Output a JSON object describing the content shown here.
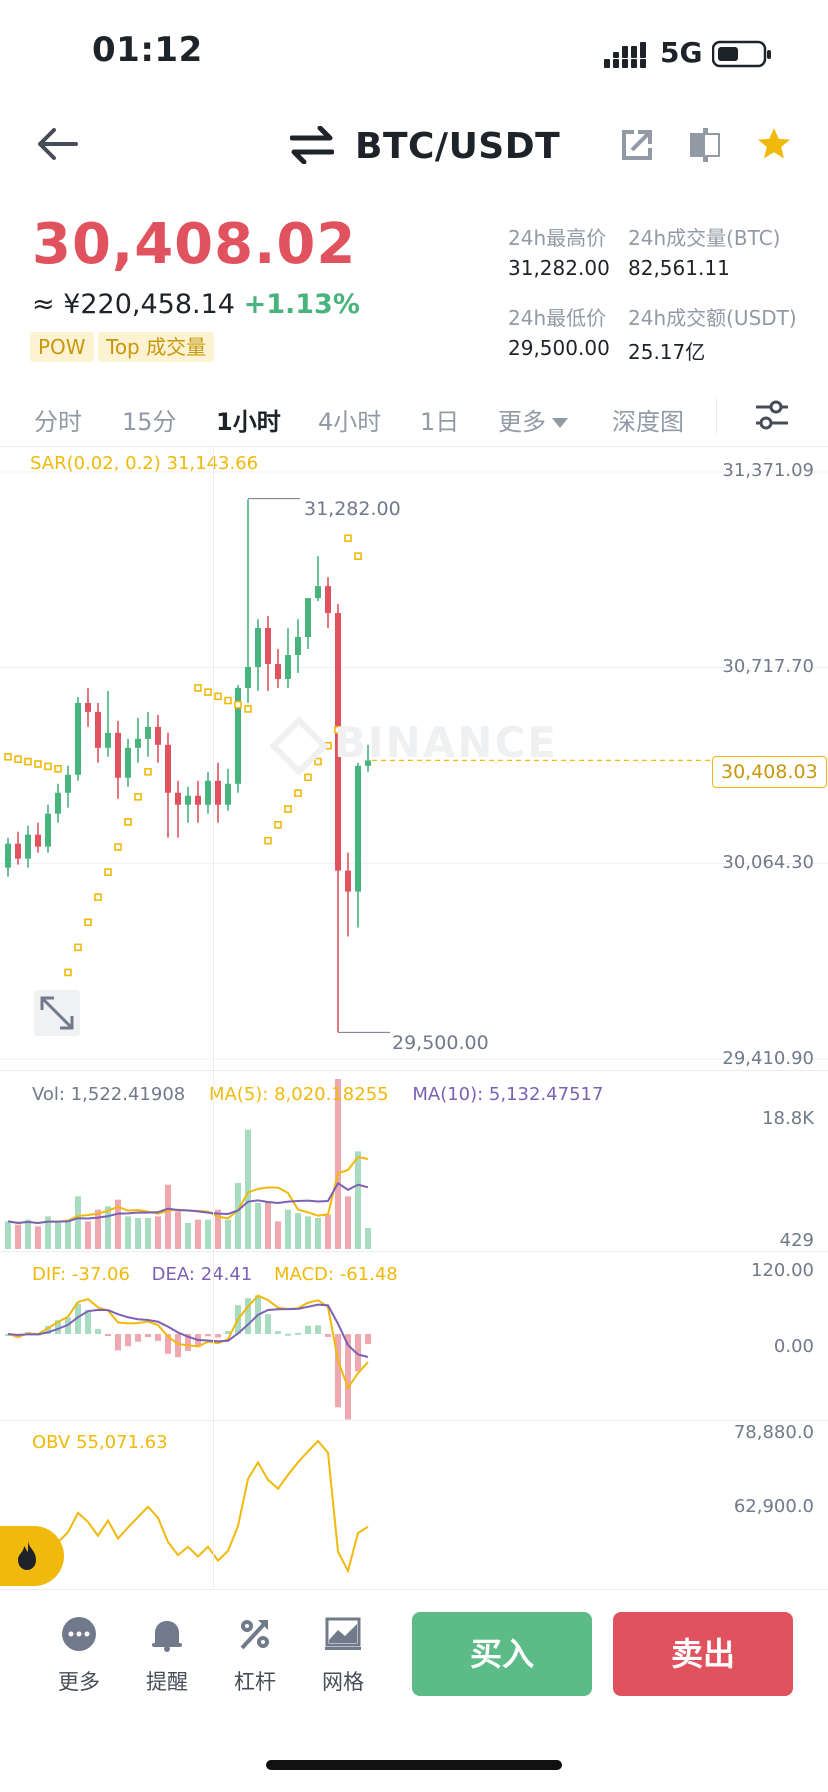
{
  "status_bar": {
    "time": "01:12",
    "network": "5G"
  },
  "header": {
    "pair": "BTC/USDT",
    "icons": [
      "back-arrow-icon",
      "swap-icon",
      "share-icon",
      "layout-icon",
      "star-icon"
    ]
  },
  "price": {
    "last": "30,408.02",
    "cny": "≈ ¥220,458.14",
    "change": "+1.13%",
    "tags": [
      "POW",
      "Top 成交量"
    ],
    "high_label": "24h最高价",
    "high": "31,282.00",
    "vol_btc_label": "24h成交量(BTC)",
    "vol_btc": "82,561.11",
    "low_label": "24h最低价",
    "low": "29,500.00",
    "vol_usdt_label": "24h成交额(USDT)",
    "vol_usdt": "25.17亿"
  },
  "tabs": [
    "分时",
    "15分",
    "1小时",
    "4小时",
    "1日",
    "更多",
    "深度图"
  ],
  "active_tab": "1小时",
  "colors": {
    "up": "#49b37d",
    "down": "#e0525e",
    "sar": "#f0b90b",
    "ma5": "#f0b90b",
    "ma10": "#7b62b6"
  },
  "chart": {
    "sar_label": "SAR(0.02, 0.2)  31,143.66",
    "axis": [
      "31,371.09",
      "30,717.70",
      "30,064.30",
      "29,410.90"
    ],
    "current_price_tag": "30,408.03",
    "high_annot": "31,282.00",
    "low_annot": "29,500.00",
    "watermark": "BINANCE"
  },
  "volume": {
    "vol": "Vol: 1,522.41908",
    "ma5": "MA(5): 8,020.18255",
    "ma10": "MA(10): 5,132.47517",
    "axis_top": "18.8K",
    "axis_bottom": "429"
  },
  "macd": {
    "dif": "DIF: -37.06",
    "dea": "DEA: 24.41",
    "macd": "MACD: -61.48",
    "axis_top": "120.00",
    "axis_mid": "0.00"
  },
  "obv": {
    "label": "OBV 55,071.63",
    "axis_top": "78,880.0",
    "axis_mid": "62,900.0"
  },
  "bottom_bar": {
    "more": "更多",
    "alert": "提醒",
    "leverage": "杠杆",
    "grid": "网格",
    "buy": "买入",
    "sell": "卖出"
  },
  "chart_data": {
    "type": "candlestick",
    "interval": "1小时",
    "ylim": [
      29410.9,
      31371.09
    ],
    "ohlc": [
      [
        30050,
        30150,
        30020,
        30130
      ],
      [
        30130,
        30170,
        30060,
        30080
      ],
      [
        30080,
        30190,
        30050,
        30160
      ],
      [
        30160,
        30200,
        30100,
        30120
      ],
      [
        30120,
        30260,
        30100,
        30230
      ],
      [
        30230,
        30330,
        30200,
        30300
      ],
      [
        30300,
        30390,
        30250,
        30360
      ],
      [
        30360,
        30620,
        30340,
        30600
      ],
      [
        30600,
        30650,
        30520,
        30570
      ],
      [
        30570,
        30600,
        30400,
        30450
      ],
      [
        30450,
        30640,
        30420,
        30500
      ],
      [
        30500,
        30540,
        30280,
        30350
      ],
      [
        30350,
        30480,
        30320,
        30450
      ],
      [
        30450,
        30550,
        30400,
        30480
      ],
      [
        30480,
        30570,
        30420,
        30520
      ],
      [
        30520,
        30560,
        30400,
        30460
      ],
      [
        30460,
        30500,
        30150,
        30300
      ],
      [
        30300,
        30340,
        30150,
        30260
      ],
      [
        30260,
        30320,
        30200,
        30290
      ],
      [
        30290,
        30340,
        30200,
        30260
      ],
      [
        30260,
        30370,
        30230,
        30340
      ],
      [
        30340,
        30400,
        30200,
        30260
      ],
      [
        30260,
        30380,
        30240,
        30330
      ],
      [
        30330,
        30660,
        30300,
        30650
      ],
      [
        30650,
        31280,
        30600,
        30720
      ],
      [
        30720,
        30880,
        30640,
        30850
      ],
      [
        30850,
        30890,
        30640,
        30730
      ],
      [
        30730,
        30780,
        30650,
        30680
      ],
      [
        30680,
        30850,
        30650,
        30760
      ],
      [
        30760,
        30880,
        30700,
        30820
      ],
      [
        30820,
        30940,
        30780,
        30950
      ],
      [
        30950,
        31090,
        30940,
        30990
      ],
      [
        30990,
        31020,
        30850,
        30900
      ],
      [
        30900,
        30930,
        29500,
        30040
      ],
      [
        30040,
        30100,
        29820,
        29970
      ],
      [
        29970,
        30400,
        29850,
        30390
      ],
      [
        30390,
        30460,
        30370,
        30408
      ]
    ]
  }
}
